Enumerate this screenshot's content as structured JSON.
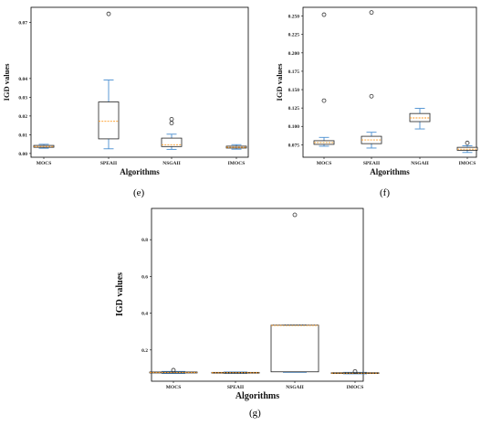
{
  "colors": {
    "box": "#222222",
    "whisker": "#4a8fd1",
    "median": "#ff9a1f",
    "outlier": "#333333"
  },
  "panel_labels": [
    "(e)",
    "(f)",
    "(g)"
  ],
  "chart_data": [
    {
      "type": "box",
      "xlabel": "Algorithms",
      "ylabel": "IGD values",
      "categories": [
        "MOCS",
        "SPEAII",
        "NSGAII",
        "IMOCS"
      ],
      "yticks": [
        "0.00",
        "0.01",
        "0.02",
        "0.03",
        "0.04",
        "0.07"
      ],
      "ytick_values": [
        0.0,
        0.01,
        0.02,
        0.03,
        0.04,
        0.07
      ],
      "ylim": [
        -0.002,
        0.078
      ],
      "boxes": [
        {
          "whislo": 0.0028,
          "q1": 0.0033,
          "med": 0.0037,
          "q3": 0.0043,
          "whishi": 0.0049,
          "fliers": []
        },
        {
          "whislo": 0.0025,
          "q1": 0.0078,
          "med": 0.0172,
          "q3": 0.0275,
          "whishi": 0.0392,
          "fliers": [
            0.0745
          ]
        },
        {
          "whislo": 0.0022,
          "q1": 0.0037,
          "med": 0.0047,
          "q3": 0.0082,
          "whishi": 0.0103,
          "fliers": [
            0.0162,
            0.0183
          ]
        },
        {
          "whislo": 0.0023,
          "q1": 0.0029,
          "med": 0.0033,
          "q3": 0.0039,
          "whishi": 0.0047,
          "fliers": []
        }
      ]
    },
    {
      "type": "box",
      "xlabel": "Algorithms",
      "ylabel": "IGD values",
      "categories": [
        "MOCS",
        "SPEAII",
        "NSGAII",
        "IMOCS"
      ],
      "yticks": [
        "0.075",
        "0.100",
        "0.125",
        "0.150",
        "0.175",
        "0.200",
        "0.225",
        "0.250"
      ],
      "ytick_values": [
        0.075,
        0.1,
        0.125,
        0.15,
        0.175,
        0.2,
        0.225,
        0.25
      ],
      "ylim": [
        0.058,
        0.262
      ],
      "boxes": [
        {
          "whislo": 0.073,
          "q1": 0.0755,
          "med": 0.078,
          "q3": 0.0805,
          "whishi": 0.085,
          "fliers": [
            0.135,
            0.252
          ]
        },
        {
          "whislo": 0.0705,
          "q1": 0.0765,
          "med": 0.0815,
          "q3": 0.0865,
          "whishi": 0.092,
          "fliers": [
            0.141,
            0.255
          ]
        },
        {
          "whislo": 0.0965,
          "q1": 0.1065,
          "med": 0.1115,
          "q3": 0.1175,
          "whishi": 0.1245,
          "fliers": []
        },
        {
          "whislo": 0.0645,
          "q1": 0.0675,
          "med": 0.069,
          "q3": 0.0715,
          "whishi": 0.0735,
          "fliers": [
            0.0775
          ]
        }
      ]
    },
    {
      "type": "box",
      "xlabel": "Algorithms",
      "ylabel": "IGD values",
      "categories": [
        "MOCS",
        "SPEAII",
        "NSGAII",
        "IMOCS"
      ],
      "yticks": [
        "0.2",
        "0.4",
        "0.6",
        "0.8"
      ],
      "ytick_values": [
        0.2,
        0.4,
        0.6,
        0.8
      ],
      "ylim": [
        0.03,
        0.97
      ],
      "boxes": [
        {
          "whislo": 0.072,
          "q1": 0.075,
          "med": 0.077,
          "q3": 0.08,
          "whishi": 0.083,
          "fliers": [
            0.09
          ]
        },
        {
          "whislo": 0.072,
          "q1": 0.074,
          "med": 0.076,
          "q3": 0.078,
          "whishi": 0.08,
          "fliers": []
        },
        {
          "whislo": 0.078,
          "q1": 0.081,
          "med": 0.333,
          "q3": 0.335,
          "whishi": 0.336,
          "fliers": [
            0.935
          ]
        },
        {
          "whislo": 0.07,
          "q1": 0.072,
          "med": 0.074,
          "q3": 0.076,
          "whishi": 0.078,
          "fliers": [
            0.083
          ]
        }
      ]
    }
  ]
}
